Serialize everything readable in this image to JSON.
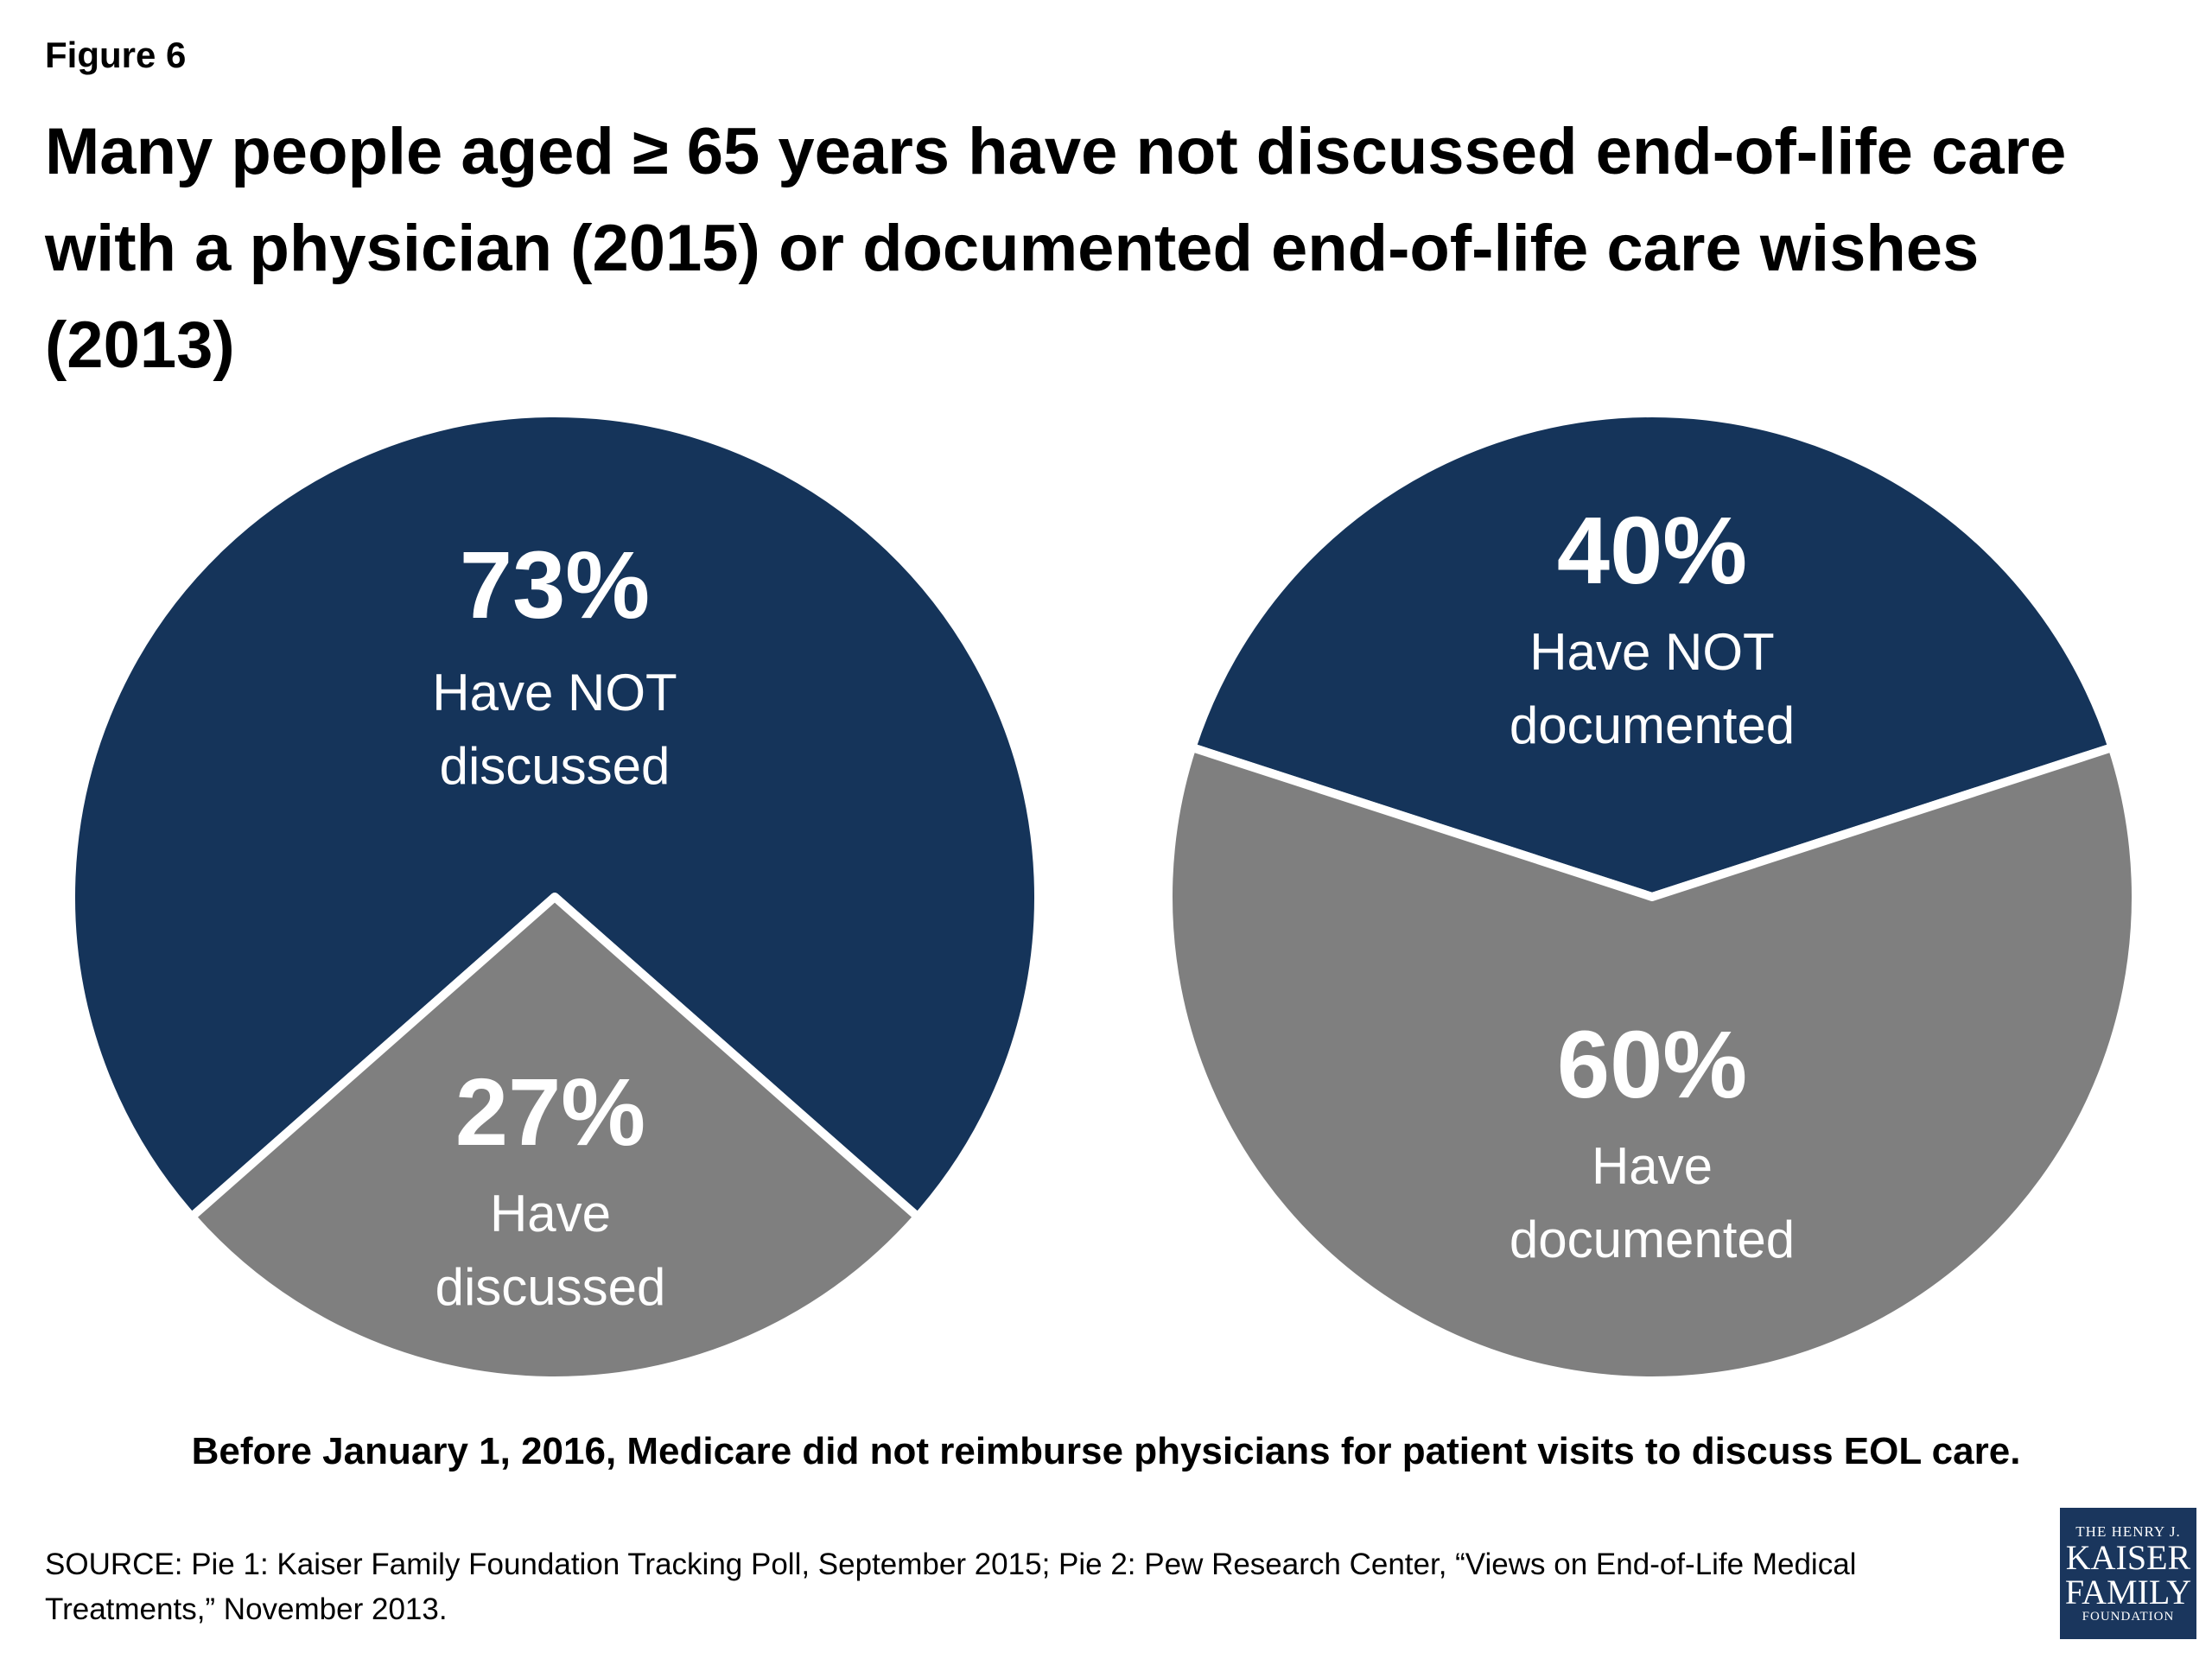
{
  "figure_label": "Figure 6",
  "title": "Many people aged ≥ 65 years have not discussed end-of-life care with a physician (2015) or documented end-of-life care wishes (2013)",
  "note": "Before January 1, 2016, Medicare did not reimburse physicians for patient visits to discuss EOL care.",
  "source": "SOURCE: Pie 1: Kaiser Family Foundation Tracking Poll, September 2015; Pie 2: Pew Research Center, “Views on End-of-Life Medical Treatments,” November 2013.",
  "logo": {
    "line1": "THE HENRY J.",
    "line2": "KAISER",
    "line3": "FAMILY",
    "line4": "FOUNDATION",
    "color": "#1a365d"
  },
  "colors": {
    "navy": "#15345a",
    "gray": "#7f7f7f"
  },
  "chart_data": [
    {
      "type": "pie",
      "title": "",
      "slices": [
        {
          "pct_label": "73%",
          "label_line1": "Have NOT",
          "label_line2": "discussed",
          "value": 73,
          "color": "#15345a"
        },
        {
          "pct_label": "27%",
          "label_line1": "Have",
          "label_line2": "discussed",
          "value": 27,
          "color": "#7f7f7f"
        }
      ]
    },
    {
      "type": "pie",
      "title": "",
      "slices": [
        {
          "pct_label": "40%",
          "label_line1": "Have NOT",
          "label_line2": "documented",
          "value": 40,
          "color": "#15345a"
        },
        {
          "pct_label": "60%",
          "label_line1": "Have",
          "label_line2": "documented",
          "value": 60,
          "color": "#7f7f7f"
        }
      ]
    }
  ]
}
